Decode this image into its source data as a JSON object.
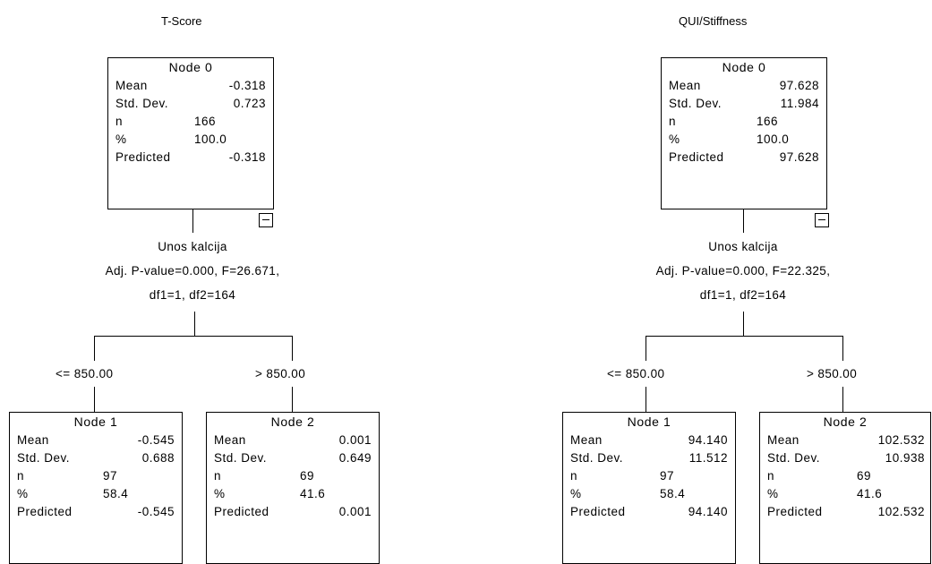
{
  "trees": [
    {
      "title": "T-Score",
      "root": {
        "header": "Node 0",
        "stats": [
          {
            "label": "Mean",
            "value": "-0.318"
          },
          {
            "label": "Std. Dev.",
            "value": "0.723"
          },
          {
            "label": "n",
            "value": "166"
          },
          {
            "label": "%",
            "value": "100.0"
          },
          {
            "label": "Predicted",
            "value": "-0.318"
          }
        ]
      },
      "split": {
        "variable": "Unos kalcija",
        "test": "Adj. P-value=0.000, F=26.671,",
        "df": "df1=1, df2=164"
      },
      "branches": [
        {
          "condition": "<= 850.00",
          "node": {
            "header": "Node 1",
            "stats": [
              {
                "label": "Mean",
                "value": "-0.545"
              },
              {
                "label": "Std. Dev.",
                "value": "0.688"
              },
              {
                "label": "n",
                "value": "97"
              },
              {
                "label": "%",
                "value": "58.4"
              },
              {
                "label": "Predicted",
                "value": "-0.545"
              }
            ]
          }
        },
        {
          "condition": "> 850.00",
          "node": {
            "header": "Node 2",
            "stats": [
              {
                "label": "Mean",
                "value": "0.001"
              },
              {
                "label": "Std. Dev.",
                "value": "0.649"
              },
              {
                "label": "n",
                "value": "69"
              },
              {
                "label": "%",
                "value": "41.6"
              },
              {
                "label": "Predicted",
                "value": "0.001"
              }
            ]
          }
        }
      ]
    },
    {
      "title": "QUI/Stiffness",
      "root": {
        "header": "Node 0",
        "stats": [
          {
            "label": "Mean",
            "value": "97.628"
          },
          {
            "label": "Std. Dev.",
            "value": "11.984"
          },
          {
            "label": "n",
            "value": "166"
          },
          {
            "label": "%",
            "value": "100.0"
          },
          {
            "label": "Predicted",
            "value": "97.628"
          }
        ]
      },
      "split": {
        "variable": "Unos kalcija",
        "test": "Adj. P-value=0.000, F=22.325,",
        "df": "df1=1, df2=164"
      },
      "branches": [
        {
          "condition": "<= 850.00",
          "node": {
            "header": "Node 1",
            "stats": [
              {
                "label": "Mean",
                "value": "94.140"
              },
              {
                "label": "Std. Dev.",
                "value": "11.512"
              },
              {
                "label": "n",
                "value": "97"
              },
              {
                "label": "%",
                "value": "58.4"
              },
              {
                "label": "Predicted",
                "value": "94.140"
              }
            ]
          }
        },
        {
          "condition": "> 850.00",
          "node": {
            "header": "Node 2",
            "stats": [
              {
                "label": "Mean",
                "value": "102.532"
              },
              {
                "label": "Std. Dev.",
                "value": "10.938"
              },
              {
                "label": "n",
                "value": "69"
              },
              {
                "label": "%",
                "value": "41.6"
              },
              {
                "label": "Predicted",
                "value": "102.532"
              }
            ]
          }
        }
      ]
    }
  ]
}
